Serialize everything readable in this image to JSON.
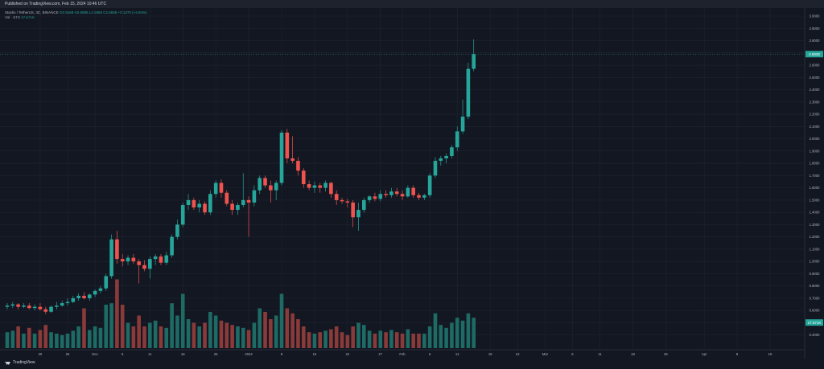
{
  "header": {
    "published": "Published on TradingView.com, Feb 15, 2024 10:46 UTC"
  },
  "legend": {
    "symbol": "Stacks / TetherUS, 3D, BINANCE",
    "ohlc": "O2.5668 H2.8085 L2.5550 C2.6938 +0.1270 (+4.94%)",
    "volume_label": "Vol · STX",
    "volume_value": "27.671K"
  },
  "footer": {
    "brand": "TradingView"
  },
  "colors": {
    "up": "#26a69a",
    "down": "#ef5350",
    "up_vol": "#1e6a64",
    "down_vol": "#8a3a39",
    "background": "#131722",
    "grid": "#1f2433",
    "axis_text": "#b2b5be"
  },
  "price_badge": "2.6938",
  "volume_badge": "27.671K",
  "chart_data": {
    "type": "candlestick",
    "symbol": "STXUSDT",
    "interval": "3D",
    "ylim": [
      0.3,
      3.0
    ],
    "y_ticks": [
      {
        "v": 3.0,
        "label": "3.0000"
      },
      {
        "v": 2.9,
        "label": "2.9000"
      },
      {
        "v": 2.8,
        "label": "2.8000"
      },
      {
        "v": 2.7,
        "label": "2.7000"
      },
      {
        "v": 2.6,
        "label": "2.6000"
      },
      {
        "v": 2.5,
        "label": "2.5000"
      },
      {
        "v": 2.4,
        "label": "2.4000"
      },
      {
        "v": 2.3,
        "label": "2.3000"
      },
      {
        "v": 2.2,
        "label": "2.2000"
      },
      {
        "v": 2.1,
        "label": "2.1000"
      },
      {
        "v": 2.0,
        "label": "2.0000"
      },
      {
        "v": 1.9,
        "label": "1.9000"
      },
      {
        "v": 1.8,
        "label": "1.8000"
      },
      {
        "v": 1.7,
        "label": "1.7000"
      },
      {
        "v": 1.6,
        "label": "1.6000"
      },
      {
        "v": 1.5,
        "label": "1.5000"
      },
      {
        "v": 1.4,
        "label": "1.4000"
      },
      {
        "v": 1.3,
        "label": "1.3000"
      },
      {
        "v": 1.2,
        "label": "1.2000"
      },
      {
        "v": 1.1,
        "label": "1.1000"
      },
      {
        "v": 1.0,
        "label": "1.0000"
      },
      {
        "v": 0.9,
        "label": "0.9000"
      },
      {
        "v": 0.8,
        "label": "0.8000"
      },
      {
        "v": 0.7,
        "label": "0.7000"
      },
      {
        "v": 0.6,
        "label": "0.6000"
      },
      {
        "v": 0.5,
        "label": "0.5000"
      },
      {
        "v": 0.4,
        "label": "0.4000"
      }
    ],
    "x_ticks": [
      {
        "i": 6,
        "label": "20"
      },
      {
        "i": 11,
        "label": "25"
      },
      {
        "i": 16,
        "label": "Dec"
      },
      {
        "i": 21,
        "label": "5"
      },
      {
        "i": 26,
        "label": "11"
      },
      {
        "i": 32,
        "label": "18"
      },
      {
        "i": 38,
        "label": "25"
      },
      {
        "i": 44,
        "label": "2024"
      },
      {
        "i": 50,
        "label": "8"
      },
      {
        "i": 56,
        "label": "15"
      },
      {
        "i": 62,
        "label": "22"
      },
      {
        "i": 68,
        "label": "27"
      },
      {
        "i": 72,
        "label": "Feb"
      },
      {
        "i": 77,
        "label": "6"
      },
      {
        "i": 82,
        "label": "12"
      },
      {
        "i": 88,
        "label": "19"
      },
      {
        "i": 93,
        "label": "24"
      },
      {
        "i": 98,
        "label": "Mar"
      },
      {
        "i": 103,
        "label": "6"
      },
      {
        "i": 108,
        "label": "11"
      },
      {
        "i": 114,
        "label": "18"
      },
      {
        "i": 120,
        "label": "25"
      },
      {
        "i": 127,
        "label": "Apr"
      },
      {
        "i": 133,
        "label": "8"
      },
      {
        "i": 139,
        "label": "15"
      }
    ],
    "candles": [
      {
        "o": 0.63,
        "h": 0.66,
        "l": 0.61,
        "c": 0.64,
        "v": 0.22
      },
      {
        "o": 0.64,
        "h": 0.67,
        "l": 0.62,
        "c": 0.65,
        "v": 0.24
      },
      {
        "o": 0.65,
        "h": 0.66,
        "l": 0.61,
        "c": 0.63,
        "v": 0.3
      },
      {
        "o": 0.63,
        "h": 0.66,
        "l": 0.62,
        "c": 0.64,
        "v": 0.2
      },
      {
        "o": 0.64,
        "h": 0.66,
        "l": 0.61,
        "c": 0.62,
        "v": 0.28
      },
      {
        "o": 0.62,
        "h": 0.65,
        "l": 0.6,
        "c": 0.63,
        "v": 0.2
      },
      {
        "o": 0.63,
        "h": 0.66,
        "l": 0.6,
        "c": 0.61,
        "v": 0.25
      },
      {
        "o": 0.61,
        "h": 0.63,
        "l": 0.57,
        "c": 0.59,
        "v": 0.32
      },
      {
        "o": 0.59,
        "h": 0.64,
        "l": 0.58,
        "c": 0.63,
        "v": 0.22
      },
      {
        "o": 0.63,
        "h": 0.67,
        "l": 0.61,
        "c": 0.64,
        "v": 0.2
      },
      {
        "o": 0.64,
        "h": 0.68,
        "l": 0.63,
        "c": 0.66,
        "v": 0.18
      },
      {
        "o": 0.66,
        "h": 0.7,
        "l": 0.64,
        "c": 0.67,
        "v": 0.2
      },
      {
        "o": 0.67,
        "h": 0.72,
        "l": 0.66,
        "c": 0.7,
        "v": 0.24
      },
      {
        "o": 0.7,
        "h": 0.74,
        "l": 0.68,
        "c": 0.72,
        "v": 0.3
      },
      {
        "o": 0.72,
        "h": 0.75,
        "l": 0.69,
        "c": 0.7,
        "v": 0.55
      },
      {
        "o": 0.7,
        "h": 0.74,
        "l": 0.68,
        "c": 0.73,
        "v": 0.25
      },
      {
        "o": 0.73,
        "h": 0.77,
        "l": 0.71,
        "c": 0.76,
        "v": 0.3
      },
      {
        "o": 0.76,
        "h": 0.8,
        "l": 0.74,
        "c": 0.78,
        "v": 0.28
      },
      {
        "o": 0.78,
        "h": 0.9,
        "l": 0.76,
        "c": 0.88,
        "v": 0.6
      },
      {
        "o": 0.88,
        "h": 1.22,
        "l": 0.86,
        "c": 1.18,
        "v": 0.62
      },
      {
        "o": 1.18,
        "h": 1.25,
        "l": 0.98,
        "c": 1.02,
        "v": 0.95
      },
      {
        "o": 1.02,
        "h": 1.06,
        "l": 0.96,
        "c": 1.0,
        "v": 0.6
      },
      {
        "o": 1.0,
        "h": 1.05,
        "l": 0.97,
        "c": 1.03,
        "v": 0.35
      },
      {
        "o": 1.03,
        "h": 1.06,
        "l": 0.98,
        "c": 1.0,
        "v": 0.3
      },
      {
        "o": 1.0,
        "h": 1.02,
        "l": 0.82,
        "c": 0.97,
        "v": 0.45
      },
      {
        "o": 0.97,
        "h": 1.01,
        "l": 0.92,
        "c": 0.94,
        "v": 0.3
      },
      {
        "o": 0.94,
        "h": 1.04,
        "l": 0.86,
        "c": 1.02,
        "v": 0.35
      },
      {
        "o": 1.02,
        "h": 1.06,
        "l": 0.97,
        "c": 1.04,
        "v": 0.38
      },
      {
        "o": 1.04,
        "h": 1.06,
        "l": 0.97,
        "c": 0.99,
        "v": 0.3
      },
      {
        "o": 0.99,
        "h": 1.08,
        "l": 0.97,
        "c": 1.05,
        "v": 0.28
      },
      {
        "o": 1.05,
        "h": 1.22,
        "l": 1.03,
        "c": 1.2,
        "v": 0.62
      },
      {
        "o": 1.2,
        "h": 1.34,
        "l": 1.18,
        "c": 1.3,
        "v": 0.45
      },
      {
        "o": 1.3,
        "h": 1.48,
        "l": 1.28,
        "c": 1.46,
        "v": 0.75
      },
      {
        "o": 1.46,
        "h": 1.55,
        "l": 1.42,
        "c": 1.5,
        "v": 0.4
      },
      {
        "o": 1.5,
        "h": 1.52,
        "l": 1.42,
        "c": 1.44,
        "v": 0.35
      },
      {
        "o": 1.44,
        "h": 1.5,
        "l": 1.4,
        "c": 1.47,
        "v": 0.3
      },
      {
        "o": 1.47,
        "h": 1.49,
        "l": 1.38,
        "c": 1.4,
        "v": 0.35
      },
      {
        "o": 1.4,
        "h": 1.58,
        "l": 1.38,
        "c": 1.55,
        "v": 0.5
      },
      {
        "o": 1.55,
        "h": 1.66,
        "l": 1.52,
        "c": 1.64,
        "v": 0.45
      },
      {
        "o": 1.64,
        "h": 1.67,
        "l": 1.52,
        "c": 1.56,
        "v": 0.38
      },
      {
        "o": 1.56,
        "h": 1.58,
        "l": 1.45,
        "c": 1.47,
        "v": 0.35
      },
      {
        "o": 1.47,
        "h": 1.5,
        "l": 1.38,
        "c": 1.42,
        "v": 0.32
      },
      {
        "o": 1.42,
        "h": 1.48,
        "l": 1.38,
        "c": 1.46,
        "v": 0.3
      },
      {
        "o": 1.46,
        "h": 1.72,
        "l": 1.44,
        "c": 1.5,
        "v": 0.28
      },
      {
        "o": 1.5,
        "h": 1.53,
        "l": 1.2,
        "c": 1.48,
        "v": 0.25
      },
      {
        "o": 1.48,
        "h": 1.62,
        "l": 1.45,
        "c": 1.58,
        "v": 0.35
      },
      {
        "o": 1.58,
        "h": 1.7,
        "l": 1.55,
        "c": 1.68,
        "v": 0.55
      },
      {
        "o": 1.68,
        "h": 1.7,
        "l": 1.6,
        "c": 1.62,
        "v": 0.5
      },
      {
        "o": 1.62,
        "h": 1.66,
        "l": 1.48,
        "c": 1.58,
        "v": 0.4
      },
      {
        "o": 1.58,
        "h": 1.66,
        "l": 1.5,
        "c": 1.64,
        "v": 0.45
      },
      {
        "o": 1.64,
        "h": 2.07,
        "l": 1.62,
        "c": 2.05,
        "v": 0.75
      },
      {
        "o": 2.05,
        "h": 2.08,
        "l": 1.8,
        "c": 1.84,
        "v": 0.55
      },
      {
        "o": 1.84,
        "h": 2.02,
        "l": 1.8,
        "c": 1.82,
        "v": 0.48
      },
      {
        "o": 1.82,
        "h": 1.85,
        "l": 1.7,
        "c": 1.74,
        "v": 0.4
      },
      {
        "o": 1.74,
        "h": 1.76,
        "l": 1.6,
        "c": 1.63,
        "v": 0.3
      },
      {
        "o": 1.63,
        "h": 1.66,
        "l": 1.58,
        "c": 1.6,
        "v": 0.22
      },
      {
        "o": 1.6,
        "h": 1.65,
        "l": 1.56,
        "c": 1.62,
        "v": 0.2
      },
      {
        "o": 1.62,
        "h": 1.64,
        "l": 1.56,
        "c": 1.6,
        "v": 0.22
      },
      {
        "o": 1.6,
        "h": 1.66,
        "l": 1.57,
        "c": 1.64,
        "v": 0.24
      },
      {
        "o": 1.64,
        "h": 1.65,
        "l": 1.52,
        "c": 1.55,
        "v": 0.26
      },
      {
        "o": 1.55,
        "h": 1.58,
        "l": 1.46,
        "c": 1.5,
        "v": 0.3
      },
      {
        "o": 1.5,
        "h": 1.52,
        "l": 1.47,
        "c": 1.49,
        "v": 0.22
      },
      {
        "o": 1.49,
        "h": 1.51,
        "l": 1.44,
        "c": 1.48,
        "v": 0.18
      },
      {
        "o": 1.48,
        "h": 1.5,
        "l": 1.28,
        "c": 1.36,
        "v": 0.3
      },
      {
        "o": 1.36,
        "h": 1.48,
        "l": 1.25,
        "c": 1.42,
        "v": 0.35
      },
      {
        "o": 1.42,
        "h": 1.52,
        "l": 1.4,
        "c": 1.5,
        "v": 0.32
      },
      {
        "o": 1.5,
        "h": 1.54,
        "l": 1.48,
        "c": 1.53,
        "v": 0.24
      },
      {
        "o": 1.53,
        "h": 1.56,
        "l": 1.49,
        "c": 1.51,
        "v": 0.2
      },
      {
        "o": 1.51,
        "h": 1.58,
        "l": 1.49,
        "c": 1.55,
        "v": 0.24
      },
      {
        "o": 1.55,
        "h": 1.58,
        "l": 1.52,
        "c": 1.54,
        "v": 0.22
      },
      {
        "o": 1.54,
        "h": 1.6,
        "l": 1.52,
        "c": 1.57,
        "v": 0.25
      },
      {
        "o": 1.57,
        "h": 1.6,
        "l": 1.53,
        "c": 1.55,
        "v": 0.22
      },
      {
        "o": 1.55,
        "h": 1.58,
        "l": 1.5,
        "c": 1.53,
        "v": 0.2
      },
      {
        "o": 1.53,
        "h": 1.62,
        "l": 1.52,
        "c": 1.6,
        "v": 0.26
      },
      {
        "o": 1.6,
        "h": 1.62,
        "l": 1.52,
        "c": 1.54,
        "v": 0.2
      },
      {
        "o": 1.54,
        "h": 1.56,
        "l": 1.5,
        "c": 1.52,
        "v": 0.2
      },
      {
        "o": 1.52,
        "h": 1.55,
        "l": 1.5,
        "c": 1.54,
        "v": 0.2
      },
      {
        "o": 1.54,
        "h": 1.72,
        "l": 1.52,
        "c": 1.7,
        "v": 0.3
      },
      {
        "o": 1.7,
        "h": 1.85,
        "l": 1.68,
        "c": 1.82,
        "v": 0.48
      },
      {
        "o": 1.82,
        "h": 1.86,
        "l": 1.78,
        "c": 1.84,
        "v": 0.32
      },
      {
        "o": 1.84,
        "h": 1.88,
        "l": 1.8,
        "c": 1.86,
        "v": 0.28
      },
      {
        "o": 1.86,
        "h": 1.95,
        "l": 1.84,
        "c": 1.93,
        "v": 0.35
      },
      {
        "o": 1.93,
        "h": 2.1,
        "l": 1.9,
        "c": 2.06,
        "v": 0.42
      },
      {
        "o": 2.06,
        "h": 2.32,
        "l": 2.04,
        "c": 2.18,
        "v": 0.38
      },
      {
        "o": 2.18,
        "h": 2.62,
        "l": 2.16,
        "c": 2.57,
        "v": 0.48
      },
      {
        "o": 2.57,
        "h": 2.81,
        "l": 2.55,
        "c": 2.69,
        "v": 0.42
      }
    ]
  }
}
